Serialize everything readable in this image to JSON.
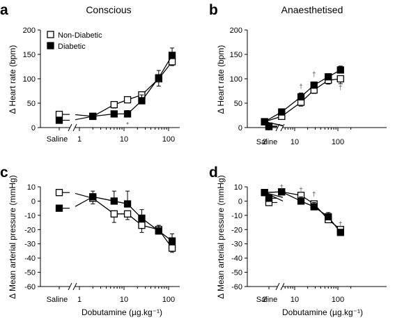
{
  "legend": {
    "non_diabetic": "Non-Diabetic",
    "diabetic": "Diabetic"
  },
  "saline_label": "Saline",
  "chart_data": [
    {
      "panel": "a",
      "type": "line",
      "title": "Conscious",
      "ylabel": "Δ Heart rate (bpm)",
      "xlabel": "",
      "ylim": [
        0,
        200
      ],
      "yticks": [
        0,
        50,
        100,
        150,
        200
      ],
      "xscale": "log",
      "xticks": [
        1,
        10,
        100
      ],
      "legend_position": "top-left",
      "saline": {
        "non_diabetic": 27,
        "diabetic": 15
      },
      "series": [
        {
          "name": "Non-Diabetic",
          "x": [
            2,
            6,
            12,
            25,
            60,
            120
          ],
          "values": [
            23,
            47,
            57,
            67,
            100,
            135
          ],
          "err": [
            5,
            7,
            6,
            9,
            15,
            8
          ]
        },
        {
          "name": "Diabetic",
          "x": [
            2,
            6,
            12,
            25,
            60,
            120
          ],
          "values": [
            23,
            28,
            28,
            55,
            102,
            148
          ],
          "err": [
            5,
            5,
            7,
            12,
            15,
            15
          ]
        }
      ],
      "annotations": [
        {
          "text": "*",
          "x": 12,
          "y": 7
        }
      ]
    },
    {
      "panel": "b",
      "type": "line",
      "title": "Anaesthetised",
      "ylabel": "Δ Heart rate (bpm)",
      "xlabel": "",
      "ylim": [
        0,
        200
      ],
      "yticks": [
        0,
        50,
        100,
        150,
        200
      ],
      "xscale": "log",
      "xticks": [
        2,
        10,
        100
      ],
      "legend_position": "",
      "saline": {
        "non_diabetic": 2,
        "diabetic": 3
      },
      "series": [
        {
          "name": "Non-Diabetic",
          "x": [
            2,
            5,
            14,
            28,
            60,
            115
          ],
          "values": [
            12,
            23,
            52,
            77,
            97,
            100
          ],
          "err": [
            3,
            4,
            8,
            7,
            8,
            10
          ]
        },
        {
          "name": "Diabetic",
          "x": [
            2,
            5,
            14,
            28,
            60,
            115
          ],
          "values": [
            12,
            32,
            63,
            87,
            104,
            118
          ],
          "err": [
            3,
            3,
            8,
            5,
            6,
            8
          ]
        }
      ],
      "annotations": [
        {
          "text": "†",
          "x": 14,
          "y": 85
        },
        {
          "text": "†",
          "x": 28,
          "y": 110
        },
        {
          "text": "†",
          "x": 115,
          "y": 83
        }
      ]
    },
    {
      "panel": "c",
      "type": "line",
      "title": "",
      "ylabel": "Δ Mean arterial pressure (mmHg)",
      "xlabel": "Dobutamine (µg.kg⁻¹)",
      "ylim": [
        -60,
        10
      ],
      "yticks": [
        -60,
        -50,
        -40,
        -30,
        -20,
        -10,
        0,
        10
      ],
      "xscale": "log",
      "xticks": [
        1,
        10,
        100
      ],
      "legend_position": "",
      "saline": {
        "non_diabetic": 6,
        "diabetic": -5
      },
      "series": [
        {
          "name": "Non-Diabetic",
          "x": [
            2,
            6,
            12,
            25,
            60,
            120
          ],
          "values": [
            2,
            -9,
            -9,
            -17,
            -20,
            -33
          ],
          "err": [
            4,
            6,
            4,
            5,
            3,
            3
          ]
        },
        {
          "name": "Diabetic",
          "x": [
            2,
            6,
            12,
            25,
            60,
            120
          ],
          "values": [
            3,
            0,
            -2,
            -12,
            -21,
            -28
          ],
          "err": [
            4,
            7,
            9,
            6,
            4,
            5
          ]
        }
      ],
      "annotations": []
    },
    {
      "panel": "d",
      "type": "line",
      "title": "",
      "ylabel": "Δ Mean arterial pressure (mmHg)",
      "xlabel": "Dobutamine (µg.kg⁻¹)",
      "ylim": [
        -60,
        10
      ],
      "yticks": [
        -60,
        -50,
        -40,
        -30,
        -20,
        -10,
        0,
        10
      ],
      "xscale": "log",
      "xticks": [
        2,
        10,
        100
      ],
      "legend_position": "",
      "saline": {
        "non_diabetic": -1,
        "diabetic": 2
      },
      "series": [
        {
          "name": "Non-Diabetic",
          "x": [
            2,
            5,
            14,
            28,
            60,
            115
          ],
          "values": [
            6,
            6.5,
            4,
            -2,
            -13,
            -20
          ],
          "err": [
            1.5,
            1.5,
            2,
            2,
            2,
            2
          ]
        },
        {
          "name": "Diabetic",
          "x": [
            2,
            5,
            14,
            28,
            60,
            115
          ],
          "values": [
            6,
            6.5,
            0,
            -4,
            -11,
            -22
          ],
          "err": [
            1.5,
            1.5,
            3,
            3,
            3,
            2
          ]
        }
      ],
      "annotations": [
        {
          "text": "†",
          "x": 5,
          "y": 10
        },
        {
          "text": "†",
          "x": 14,
          "y": 8
        },
        {
          "text": "†",
          "x": 28,
          "y": 5
        },
        {
          "text": "†",
          "x": 115,
          "y": -16
        }
      ]
    }
  ]
}
